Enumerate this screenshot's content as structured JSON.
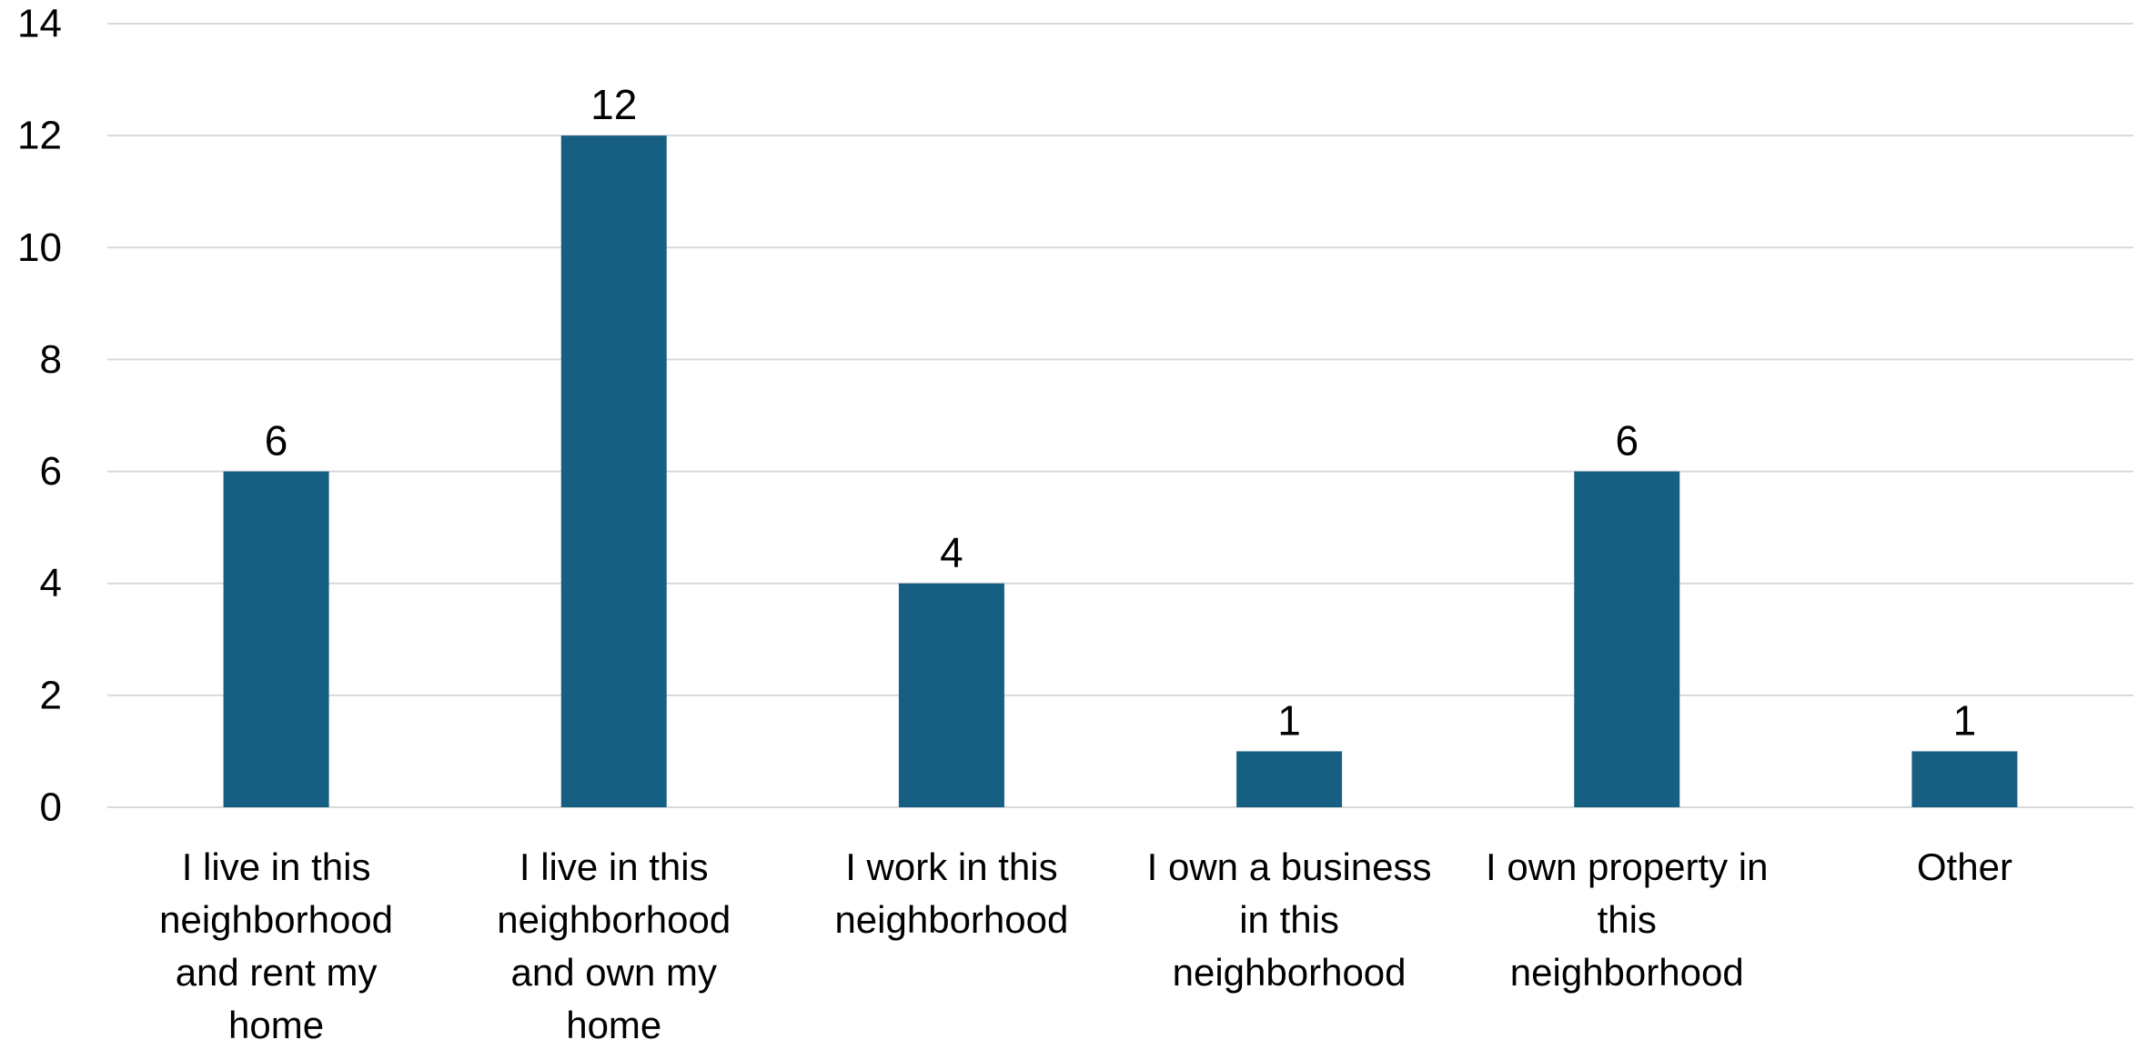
{
  "chart_data": {
    "type": "bar",
    "categories": [
      [
        "I live in this",
        "neighborhood",
        "and rent my",
        "home"
      ],
      [
        "I live in this",
        "neighborhood",
        "and own my",
        "home"
      ],
      [
        "I work in this",
        "neighborhood"
      ],
      [
        "I own a business",
        "in this",
        "neighborhood"
      ],
      [
        "I own property in",
        "this",
        "neighborhood"
      ],
      [
        "Other"
      ]
    ],
    "values": [
      6,
      12,
      4,
      1,
      6,
      1
    ],
    "data_labels": [
      "6",
      "12",
      "4",
      "1",
      "6",
      "1"
    ],
    "ylim": [
      0,
      14
    ],
    "yticks": [
      0,
      2,
      4,
      6,
      8,
      10,
      12,
      14
    ],
    "grid": true,
    "legend": "none",
    "colors": {
      "bar": "#175F82",
      "grid": "#D9D9D9",
      "axis": "#D9D9D9"
    }
  }
}
